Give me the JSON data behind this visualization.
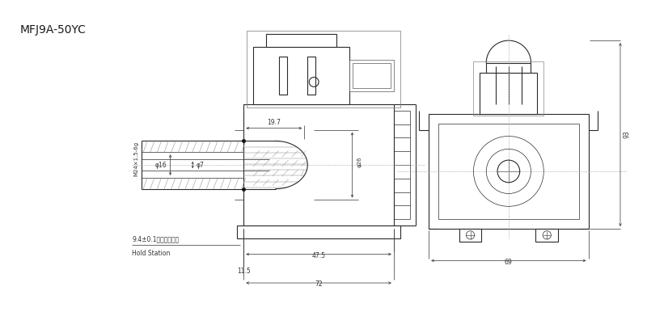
{
  "title": "MFJ9A-50YC",
  "bg_color": "#ffffff",
  "line_color": "#2a2a2a",
  "dim_color": "#333333",
  "fig_width": 8.0,
  "fig_height": 4.12,
  "dimensions": {
    "d7": "φ7",
    "d16": "φ16",
    "d26": "φ26",
    "thread": "M24×1.5-6g",
    "len_19_7": "19.7",
    "len_47_5": "47.5",
    "len_72": "72",
    "len_11_5": "11.5",
    "hold": "9.4±0.1（吸合位置）",
    "hold_en": "Hold Station",
    "width_69": "69",
    "height_93": "93"
  }
}
